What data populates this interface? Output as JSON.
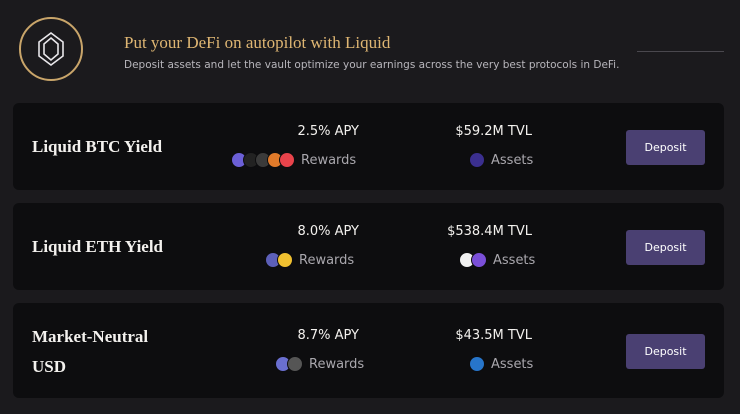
{
  "header": {
    "title": "Put your DeFi on autopilot with Liquid",
    "subtitle": "Deposit assets and let the vault optimize your earnings across the very best protocols in DeFi."
  },
  "vaults": [
    {
      "name": "Liquid BTC Yield",
      "apy": "2.5% APY",
      "rewards": "Rewards",
      "tvl": "$59.2M TVL",
      "assets": "Assets",
      "button": "Deposit"
    },
    {
      "name": "Liquid ETH Yield",
      "apy": "8.0% APY",
      "rewards": "Rewards",
      "tvl": "$538.4M TVL",
      "assets": "Assets",
      "button": "Deposit"
    },
    {
      "name": "Market-Neutral USD",
      "apy": "8.7% APY",
      "rewards": "Rewards",
      "tvl": "$43.5M TVL",
      "assets": "Assets",
      "button": "Deposit"
    }
  ]
}
